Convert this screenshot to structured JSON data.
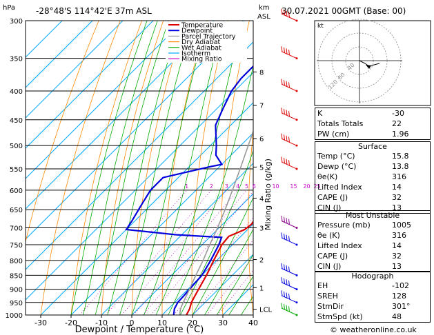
{
  "header": {
    "location": "-28°48'S  114°42'E  37m  ASL",
    "datetime": "30.07.2021  00GMT  (Base: 00)",
    "p_unit": "hPa",
    "km_unit": "km",
    "asl_label": "ASL"
  },
  "chart_data": {
    "type": "skew-t",
    "xlabel": "Dewpoint / Temperature (°C)",
    "mixing_ratio_axis_label": "Mixing Ratio (g/kg)",
    "pressure_levels": [
      300,
      350,
      400,
      450,
      500,
      550,
      600,
      650,
      700,
      750,
      800,
      850,
      900,
      950,
      1000
    ],
    "pressure_range": [
      300,
      1000
    ],
    "temperature_range": [
      -35,
      40
    ],
    "temperature_ticks": [
      -30,
      -20,
      -10,
      0,
      10,
      20,
      30,
      40
    ],
    "km_ticks": [
      {
        "label": "8",
        "p": 370
      },
      {
        "label": "7",
        "p": 424
      },
      {
        "label": "6",
        "p": 486
      },
      {
        "label": "5",
        "p": 546
      },
      {
        "label": "4",
        "p": 620
      },
      {
        "label": "3",
        "p": 700
      },
      {
        "label": "2",
        "p": 797
      },
      {
        "label": "1",
        "p": 894
      },
      {
        "label": "LCL",
        "p": 977
      }
    ],
    "mixing_ratio_labels": [
      "1",
      "2",
      "3",
      "4",
      "5",
      "6",
      "10",
      "15",
      "20",
      "25"
    ],
    "legend": [
      {
        "label": "Temperature",
        "color": "#dd0000"
      },
      {
        "label": "Dewpoint",
        "color": "#0000dd"
      },
      {
        "label": "Parcel Trajectory",
        "color": "#999999"
      },
      {
        "label": "Dry Adiabat",
        "color": "#ff8800"
      },
      {
        "label": "Wet Adiabat",
        "color": "#00aa00"
      },
      {
        "label": "Isotherm",
        "color": "#00aaff"
      },
      {
        "label": "Mixing Ratio",
        "color": "#cc00cc"
      }
    ],
    "series": [
      {
        "name": "Temperature",
        "color": "#dd0000",
        "points": [
          [
            1000,
            18
          ],
          [
            975,
            17
          ],
          [
            950,
            15.5
          ],
          [
            925,
            14.5
          ],
          [
            900,
            13.5
          ],
          [
            850,
            11.5
          ],
          [
            800,
            9
          ],
          [
            750,
            6.5
          ],
          [
            725,
            6
          ],
          [
            705,
            9
          ],
          [
            690,
            9.5
          ],
          [
            650,
            8
          ],
          [
            620,
            8
          ],
          [
            600,
            7.5
          ],
          [
            575,
            4.5
          ],
          [
            550,
            1
          ],
          [
            530,
            -1
          ],
          [
            510,
            -3
          ],
          [
            500,
            -4.5
          ],
          [
            470,
            -7
          ],
          [
            450,
            -9.5
          ],
          [
            420,
            -13.5
          ],
          [
            400,
            -17
          ],
          [
            380,
            -20
          ],
          [
            365,
            -22.5
          ]
        ]
      },
      {
        "name": "Dewpoint",
        "color": "#0000dd",
        "points": [
          [
            1000,
            13.8
          ],
          [
            975,
            12
          ],
          [
            950,
            11
          ],
          [
            925,
            10.8
          ],
          [
            900,
            10.5
          ],
          [
            850,
            10
          ],
          [
            800,
            8
          ],
          [
            750,
            5.5
          ],
          [
            728,
            4
          ],
          [
            720,
            -12
          ],
          [
            705,
            -30
          ],
          [
            680,
            -31
          ],
          [
            640,
            -33
          ],
          [
            600,
            -35
          ],
          [
            570,
            -35
          ],
          [
            545,
            -23
          ],
          [
            540,
            -20
          ],
          [
            520,
            -25
          ],
          [
            500,
            -28
          ],
          [
            460,
            -35
          ],
          [
            430,
            -38
          ],
          [
            400,
            -41
          ],
          [
            380,
            -42
          ],
          [
            340,
            -42
          ],
          [
            320,
            -44
          ],
          [
            300,
            -49
          ]
        ]
      },
      {
        "name": "Parcel Trajectory",
        "color": "#999999",
        "points": [
          [
            1000,
            15.8
          ],
          [
            975,
            14
          ],
          [
            950,
            12.8
          ],
          [
            900,
            10.5
          ],
          [
            850,
            8
          ],
          [
            800,
            5.5
          ],
          [
            750,
            2.5
          ],
          [
            700,
            -0.5
          ],
          [
            650,
            -4
          ],
          [
            600,
            -8
          ],
          [
            550,
            -12.5
          ],
          [
            500,
            -17.5
          ],
          [
            450,
            -23
          ],
          [
            400,
            -29.5
          ],
          [
            350,
            -37.5
          ],
          [
            300,
            -46
          ]
        ]
      }
    ],
    "wind_barbs": [
      {
        "p": 300,
        "color": "#dd0000"
      },
      {
        "p": 350,
        "color": "#dd0000"
      },
      {
        "p": 400,
        "color": "#dd0000"
      },
      {
        "p": 450,
        "color": "#dd0000"
      },
      {
        "p": 500,
        "color": "#dd0000"
      },
      {
        "p": 550,
        "color": "#dd0000"
      },
      {
        "p": 700,
        "color": "#880088"
      },
      {
        "p": 750,
        "color": "#0000dd"
      },
      {
        "p": 850,
        "color": "#0000dd"
      },
      {
        "p": 900,
        "color": "#0000dd"
      },
      {
        "p": 950,
        "color": "#0000dd"
      },
      {
        "p": 1000,
        "color": "#00aa00"
      }
    ]
  },
  "hodograph": {
    "unit_label": "kt",
    "ring_labels": [
      "120",
      "80",
      "40"
    ]
  },
  "indices": {
    "rows": [
      {
        "label": "K",
        "value": "-30"
      },
      {
        "label": "Totals Totals",
        "value": "22"
      },
      {
        "label": "PW (cm)",
        "value": "1.96"
      }
    ]
  },
  "surface": {
    "title": "Surface",
    "rows": [
      {
        "label": "Temp (°C)",
        "value": "15.8"
      },
      {
        "label": "Dewp (°C)",
        "value": "13.8"
      },
      {
        "label": "θe(K)",
        "value": "316"
      },
      {
        "label": "Lifted Index",
        "value": "14"
      },
      {
        "label": "CAPE (J)",
        "value": "32"
      },
      {
        "label": "CIN (J)",
        "value": "13"
      }
    ]
  },
  "most_unstable": {
    "title": "Most Unstable",
    "rows": [
      {
        "label": "Pressure (mb)",
        "value": "1005"
      },
      {
        "label": "θe (K)",
        "value": "316"
      },
      {
        "label": "Lifted Index",
        "value": "14"
      },
      {
        "label": "CAPE (J)",
        "value": "32"
      },
      {
        "label": "CIN (J)",
        "value": "13"
      }
    ]
  },
  "hodograph_table": {
    "title": "Hodograph",
    "rows": [
      {
        "label": "EH",
        "value": "-102"
      },
      {
        "label": "SREH",
        "value": "128"
      },
      {
        "label": "StmDir",
        "value": "301°"
      },
      {
        "label": "StmSpd (kt)",
        "value": "48"
      }
    ]
  },
  "footer": "© weatheronline.co.uk"
}
